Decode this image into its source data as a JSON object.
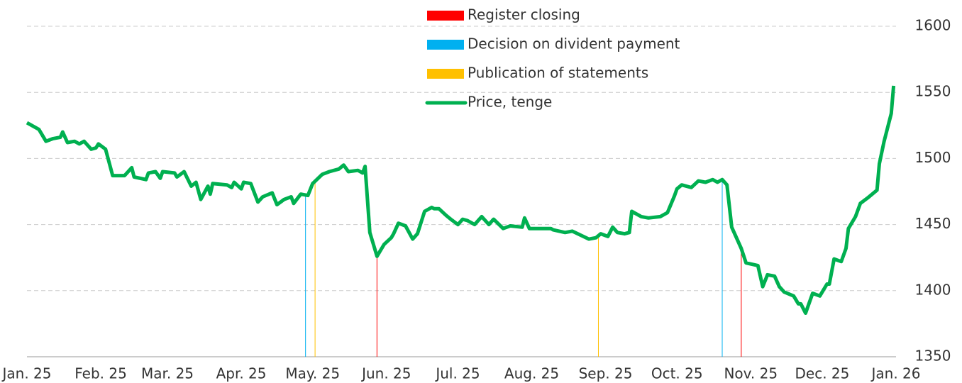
{
  "chart_data": {
    "type": "line",
    "xlim": [
      0,
      365
    ],
    "xticks": [
      {
        "value": 0,
        "label": "Jan. 25"
      },
      {
        "value": 31,
        "label": "Feb. 25"
      },
      {
        "value": 59,
        "label": "Mar. 25"
      },
      {
        "value": 90,
        "label": "Apr. 25"
      },
      {
        "value": 120,
        "label": "May. 25"
      },
      {
        "value": 151,
        "label": "Jun. 25"
      },
      {
        "value": 181,
        "label": "Jul. 25"
      },
      {
        "value": 212,
        "label": "Aug. 25"
      },
      {
        "value": 243,
        "label": "Sep. 25"
      },
      {
        "value": 273,
        "label": "Oct. 25"
      },
      {
        "value": 304,
        "label": "Nov. 25"
      },
      {
        "value": 334,
        "label": "Dec. 25"
      },
      {
        "value": 365,
        "label": "Jan. 26"
      }
    ],
    "ylim": [
      1350,
      1600
    ],
    "yticks": [
      1350,
      1400,
      1450,
      1500,
      1550,
      1600
    ],
    "grid": true,
    "events": [
      {
        "name": "Register closing",
        "color": "#ff0000",
        "x": [
          147,
          300
        ]
      },
      {
        "name": "Decision on divident payment",
        "color": "#00b0f0",
        "x": [
          117,
          292
        ]
      },
      {
        "name": "Publication of statements",
        "color": "#ffc000",
        "x": [
          121,
          240
        ]
      }
    ],
    "series": [
      {
        "name": "Price, tenge",
        "color": "#00b050",
        "x": [
          0,
          5,
          8,
          11,
          14,
          15,
          17,
          20,
          22,
          24,
          27,
          29,
          30,
          33,
          36,
          41,
          44,
          45,
          50,
          51,
          54,
          56,
          57,
          62,
          63,
          66,
          69,
          71,
          73,
          76,
          77,
          78,
          84,
          86,
          87,
          90,
          91,
          94,
          97,
          99,
          103,
          105,
          108,
          111,
          112,
          115,
          118,
          120,
          124,
          127,
          131,
          133,
          135,
          139,
          141,
          142,
          144,
          147,
          150,
          153,
          154,
          156,
          159,
          162,
          164,
          167,
          170,
          171,
          173,
          176,
          178,
          181,
          183,
          185,
          188,
          191,
          194,
          196,
          200,
          203,
          208,
          209,
          211,
          220,
          221,
          226,
          229,
          236,
          239,
          241,
          244,
          246,
          248,
          251,
          253,
          254,
          258,
          261,
          266,
          269,
          272,
          273,
          275,
          279,
          282,
          285,
          288,
          290,
          292,
          294,
          296,
          300,
          302,
          307,
          309,
          311,
          314,
          316,
          318,
          322,
          324,
          325,
          327,
          330,
          333,
          336,
          337,
          339,
          342,
          344,
          345,
          348,
          350,
          353,
          357,
          358,
          360,
          363,
          364
        ],
        "values": [
          1527,
          1522,
          1513,
          1515,
          1516,
          1520,
          1512,
          1513,
          1511,
          1513,
          1507,
          1508,
          1511,
          1507,
          1487,
          1487,
          1493,
          1486,
          1484,
          1489,
          1490,
          1485,
          1490,
          1489,
          1486,
          1490,
          1479,
          1482,
          1469,
          1479,
          1473,
          1481,
          1480,
          1478,
          1482,
          1477,
          1482,
          1481,
          1467,
          1471,
          1474,
          1465,
          1469,
          1471,
          1466,
          1473,
          1472,
          1481,
          1488,
          1490,
          1492,
          1495,
          1490,
          1491,
          1489,
          1494,
          1444,
          1426,
          1435,
          1440,
          1443,
          1451,
          1449,
          1439,
          1443,
          1460,
          1463,
          1462,
          1462,
          1457,
          1454,
          1450,
          1454,
          1453,
          1450,
          1456,
          1450,
          1454,
          1447,
          1449,
          1448,
          1455,
          1447,
          1447,
          1446,
          1444,
          1445,
          1439,
          1440,
          1443,
          1441,
          1448,
          1444,
          1443,
          1444,
          1460,
          1456,
          1455,
          1456,
          1459,
          1472,
          1477,
          1480,
          1478,
          1483,
          1482,
          1484,
          1482,
          1484,
          1480,
          1448,
          1432,
          1421,
          1419,
          1403,
          1412,
          1411,
          1403,
          1399,
          1396,
          1390,
          1390,
          1383,
          1398,
          1396,
          1405,
          1405,
          1424,
          1422,
          1432,
          1447,
          1456,
          1466,
          1470,
          1476,
          1496,
          1513,
          1534,
          1555
        ]
      }
    ]
  }
}
